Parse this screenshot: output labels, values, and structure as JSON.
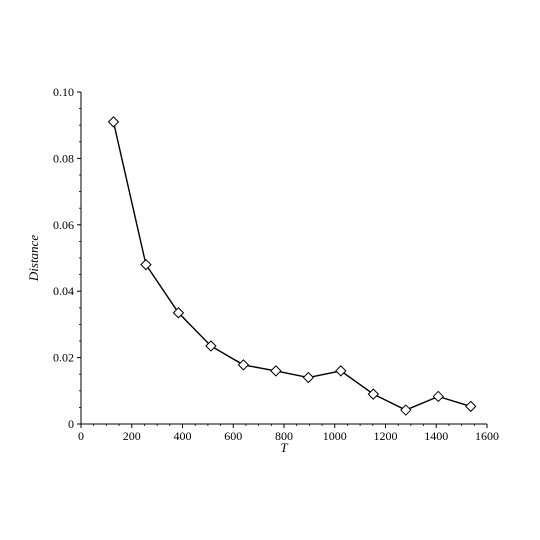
{
  "chart_data": {
    "type": "line",
    "title": "",
    "xlabel": "T",
    "ylabel": "Distance",
    "xlim": [
      0,
      1600
    ],
    "ylim": [
      0,
      0.1
    ],
    "x_ticks": [
      0,
      200,
      400,
      600,
      800,
      1000,
      1200,
      1400,
      1600
    ],
    "x_tick_labels": [
      "0",
      "200",
      "400",
      "600",
      "800",
      "1000",
      "1200",
      "1400",
      "1600"
    ],
    "y_ticks": [
      0,
      0.02,
      0.04,
      0.06,
      0.08,
      0.1
    ],
    "y_tick_labels": [
      "0",
      "0.02",
      "0.04",
      "0.06",
      "0.08",
      "0.10"
    ],
    "grid": false,
    "marker": "diamond",
    "series": [
      {
        "x": [
          128,
          256,
          384,
          512,
          640,
          768,
          896,
          1024,
          1152,
          1280,
          1408,
          1536
        ],
        "y": [
          0.091,
          0.048,
          0.0335,
          0.0235,
          0.0178,
          0.016,
          0.014,
          0.016,
          0.009,
          0.0042,
          0.0083,
          0.0053
        ]
      }
    ]
  }
}
